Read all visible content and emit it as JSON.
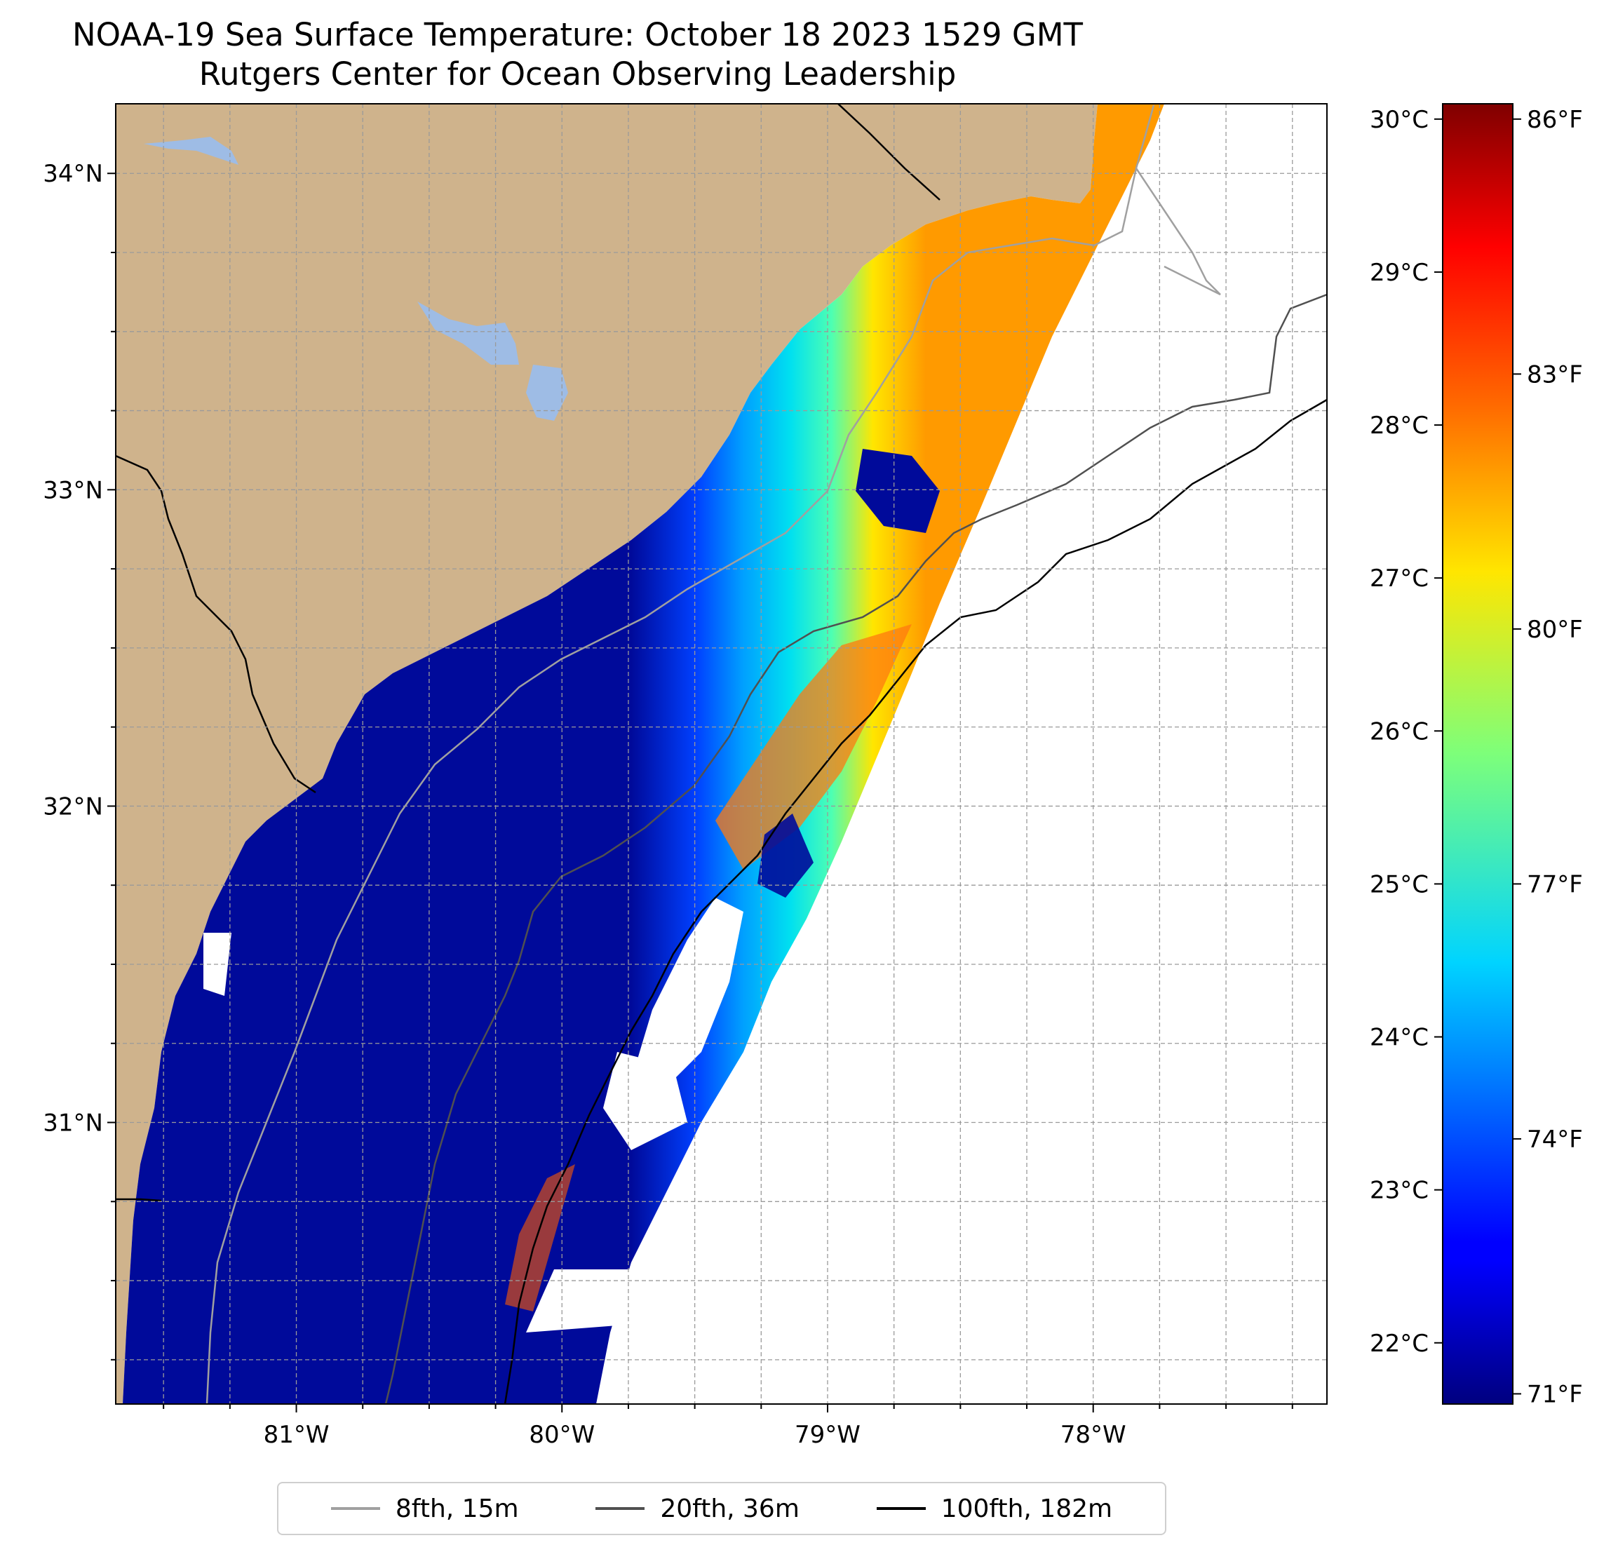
{
  "title": "NOAA-19 Sea Surface Temperature: October 18 2023 1529 GMT",
  "subtitle": "Rutgers Center for Ocean Observing Leadership",
  "map": {
    "lon_range": [
      -81.68,
      -77.12
    ],
    "lat_range": [
      30.11,
      34.22
    ],
    "land_color": "#cfb38c",
    "water_body_color": "#9ebce5",
    "lon_ticks": [
      {
        "value": -81,
        "label": "81°W"
      },
      {
        "value": -80,
        "label": "80°W"
      },
      {
        "value": -79,
        "label": "79°W"
      },
      {
        "value": -78,
        "label": "78°W"
      }
    ],
    "lat_ticks": [
      {
        "value": 34,
        "label": "34°N"
      },
      {
        "value": 33,
        "label": "33°N"
      },
      {
        "value": 32,
        "label": "32°N"
      },
      {
        "value": 31,
        "label": "31°N"
      }
    ],
    "grid": true
  },
  "colorbar": {
    "colormap": "jet",
    "range_c": [
      21.6,
      30.1
    ],
    "celsius_ticks": [
      "22°C",
      "23°C",
      "24°C",
      "25°C",
      "26°C",
      "27°C",
      "28°C",
      "29°C",
      "30°C"
    ],
    "fahrenheit_ticks": [
      "71°F",
      "74°F",
      "77°F",
      "80°F",
      "83°F",
      "86°F"
    ]
  },
  "legend": [
    {
      "label": "8fth, 15m",
      "color": "#a0a0a0"
    },
    {
      "label": "20fth, 36m",
      "color": "#505050"
    },
    {
      "label": "100fth, 182m",
      "color": "#000000"
    }
  ]
}
